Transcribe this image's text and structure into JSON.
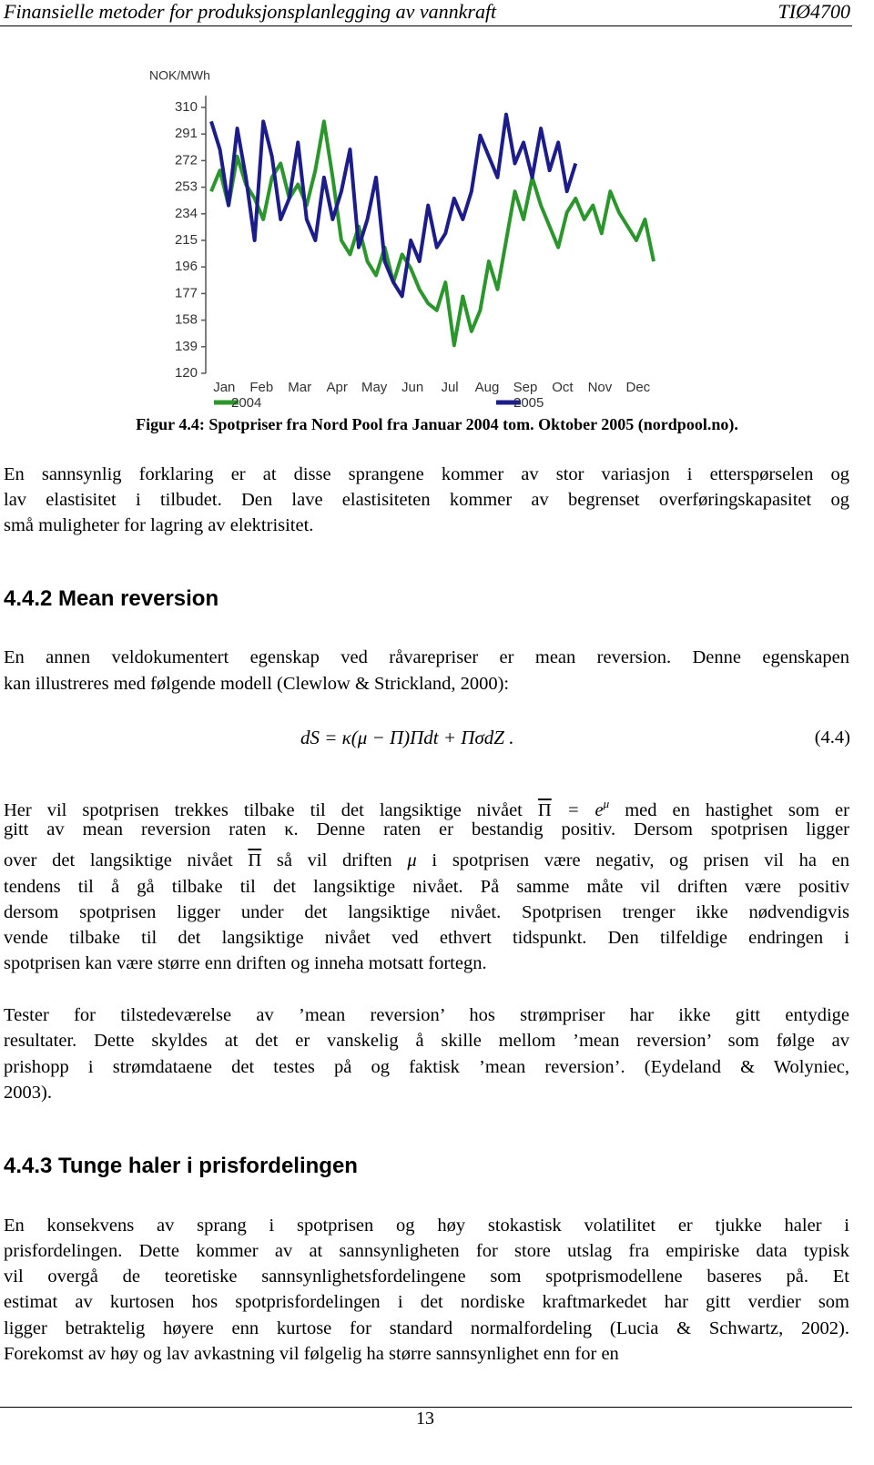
{
  "header": {
    "title": "Finansielle metoder for produksjonsplanlegging av vannkraft",
    "course": "TIØ4700"
  },
  "chart_data": {
    "type": "line",
    "y_label": "NOK/MWh",
    "ylim": [
      120,
      310
    ],
    "yticks": [
      120,
      139,
      158,
      177,
      196,
      215,
      234,
      253,
      272,
      291,
      310
    ],
    "xlim": [
      1,
      52
    ],
    "xticks": [
      {
        "value": 2.5,
        "label": "Jan"
      },
      {
        "value": 6.8,
        "label": "Feb"
      },
      {
        "value": 11.2,
        "label": "Mar"
      },
      {
        "value": 15.5,
        "label": "Apr"
      },
      {
        "value": 19.8,
        "label": "May"
      },
      {
        "value": 24.2,
        "label": "Jun"
      },
      {
        "value": 28.5,
        "label": "Jul"
      },
      {
        "value": 32.8,
        "label": "Aug"
      },
      {
        "value": 37.2,
        "label": "Sep"
      },
      {
        "value": 41.5,
        "label": "Oct"
      },
      {
        "value": 45.8,
        "label": "Nov"
      },
      {
        "value": 50.2,
        "label": "Dec"
      }
    ],
    "grid": false,
    "series": [
      {
        "name": "2004",
        "color": "#2b962b",
        "x": [
          1,
          2,
          3,
          4,
          5,
          6,
          7,
          8,
          9,
          10,
          11,
          12,
          13,
          14,
          15,
          16,
          17,
          18,
          19,
          20,
          21,
          22,
          23,
          24,
          25,
          26,
          27,
          28,
          29,
          30,
          31,
          32,
          33,
          34,
          35,
          36,
          37,
          38,
          39,
          40,
          41,
          42,
          43,
          44,
          45,
          46,
          47,
          48,
          49,
          50,
          51,
          52
        ],
        "values": [
          250,
          265,
          240,
          275,
          255,
          245,
          230,
          260,
          270,
          245,
          255,
          240,
          265,
          300,
          260,
          215,
          205,
          225,
          200,
          190,
          210,
          185,
          205,
          195,
          180,
          170,
          165,
          185,
          140,
          175,
          150,
          165,
          200,
          180,
          215,
          250,
          230,
          260,
          240,
          225,
          210,
          235,
          245,
          230,
          240,
          220,
          250,
          235,
          225,
          215,
          230,
          200
        ]
      },
      {
        "name": "2005",
        "color": "#1c1c8a",
        "x": [
          1,
          2,
          3,
          4,
          5,
          6,
          7,
          8,
          9,
          10,
          11,
          12,
          13,
          14,
          15,
          16,
          17,
          18,
          19,
          20,
          21,
          22,
          23,
          24,
          25,
          26,
          27,
          28,
          29,
          30,
          31,
          32,
          33,
          34,
          35,
          36,
          37,
          38,
          39,
          40,
          41,
          42,
          43
        ],
        "values": [
          300,
          280,
          240,
          295,
          260,
          215,
          300,
          275,
          230,
          245,
          285,
          230,
          215,
          260,
          230,
          250,
          280,
          210,
          230,
          260,
          200,
          185,
          175,
          215,
          200,
          240,
          210,
          220,
          245,
          230,
          250,
          290,
          275,
          260,
          305,
          270,
          285,
          260,
          295,
          265,
          285,
          250,
          270
        ]
      }
    ]
  },
  "caption": "Figur 4.4: Spotpriser fra Nord Pool fra Januar 2004 tom. Oktober 2005 (nordpool.no).",
  "paragraph_1": [
    "En sannsynlig forklaring er at disse sprangene kommer av stor variasjon i etterspørselen og",
    "lav elastisitet i tilbudet. Den lave elastisiteten kommer av begrenset overføringskapasitet og",
    "små muligheter for lagring av elektrisitet."
  ],
  "heading_1": "4.4.2 Mean reversion",
  "paragraph_2": [
    "En annen veldokumentert egenskap ved råvarepriser er mean reversion. Denne egenskapen",
    "kan illustreres med følgende modell (Clewlow & Strickland, 2000):"
  ],
  "equation": {
    "text": "dS = κ(μ − Π)Πdt + ΠσdZ .",
    "number": "(4.4)"
  },
  "paragraph_3": [
    [
      {
        "text": "Her vil spotprisen trekkes tilbake til det langsiktige nivået "
      },
      {
        "text": "Π",
        "style": "over"
      },
      {
        "text": " = e",
        "style": "it"
      },
      {
        "text": "μ",
        "style": "sup"
      },
      {
        "text": " med en hastighet som er"
      }
    ],
    "gitt av mean reversion raten κ. Denne raten er bestandig positiv. Dersom spotprisen ligger",
    [
      {
        "text": "over det langsiktige nivået "
      },
      {
        "text": "Π",
        "style": "over"
      },
      {
        "text": " så vil driften "
      },
      {
        "text": "μ",
        "style": "it"
      },
      {
        "text": " i spotprisen være negativ, og prisen vil ha en"
      }
    ],
    "tendens til å gå tilbake til det langsiktige nivået. På samme måte vil driften være positiv",
    "dersom spotprisen ligger under det langsiktige nivået. Spotprisen trenger ikke nødvendigvis",
    "vende tilbake til det langsiktige nivået ved ethvert tidspunkt. Den tilfeldige endringen i",
    "spotprisen kan være større enn driften og inneha motsatt fortegn."
  ],
  "paragraph_4": [
    "Tester for tilstedeværelse av ’mean reversion’ hos strømpriser har ikke gitt entydige",
    "resultater. Dette skyldes at det er vanskelig å skille mellom ’mean reversion’ som følge av",
    "prishopp i strømdataene det testes på og faktisk ’mean reversion’. (Eydeland & Wolyniec,",
    "2003)."
  ],
  "heading_2": "4.4.3 Tunge haler i prisfordelingen",
  "paragraph_5": [
    "En konsekvens av sprang i spotprisen og høy stokastisk volatilitet er tjukke haler i",
    "prisfordelingen. Dette kommer av at sannsynligheten for store utslag fra empiriske data typisk",
    "vil overgå de teoretiske sannsynlighetsfordelingene som spotprismodellene baseres på. Et",
    "estimat av kurtosen hos spotprisfordelingen i det nordiske kraftmarkedet har gitt verdier som",
    "ligger betraktelig høyere enn kurtose for standard normalfordeling (Lucia & Schwartz, 2002).",
    "Forekomst av høy og lav avkastning vil følgelig ha større sannsynlighet enn for en"
  ],
  "page_number": "13"
}
